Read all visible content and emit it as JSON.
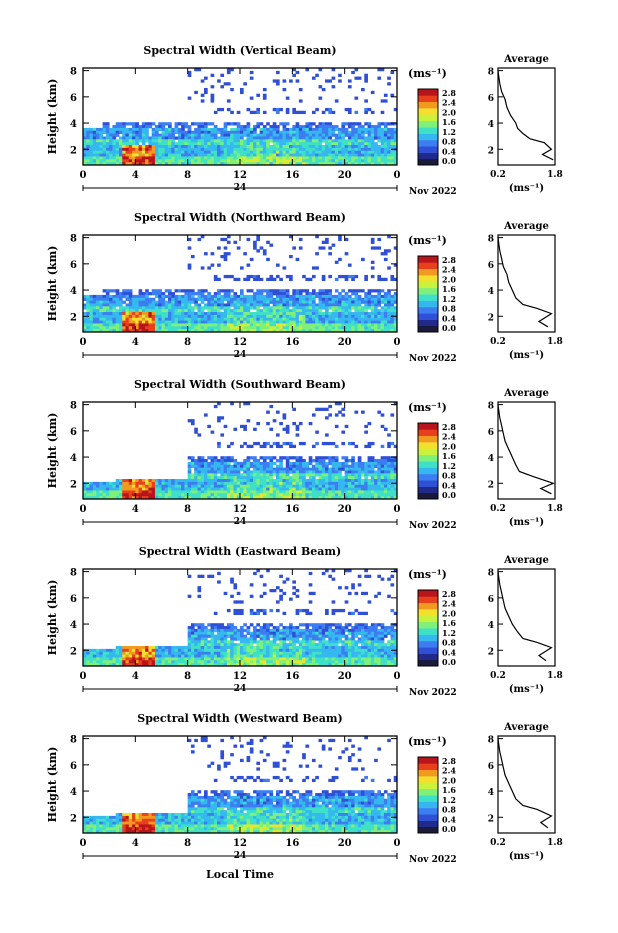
{
  "colors": {
    "background": "#ffffff",
    "axis": "#000000",
    "colormap": [
      "#1f2a8a",
      "#2f4fd6",
      "#3c7df2",
      "#35b8ef",
      "#3fe0c8",
      "#7ff07a",
      "#c8f23c",
      "#f2e02c",
      "#f29a20",
      "#e8401c",
      "#b8141c"
    ]
  },
  "footer": {
    "xlabel": "Local Time"
  },
  "chart_data": [
    {
      "type": "heatmap",
      "title": "Spectral Width (Vertical Beam)",
      "ylabel": "Height (km)",
      "xlabel": "",
      "x_ticks": [
        "0",
        "4",
        "8",
        "12",
        "16",
        "20",
        "0"
      ],
      "day_label": "24",
      "month_label": "Nov 2022",
      "y_ticks": [
        "2",
        "4",
        "6",
        "8"
      ],
      "xlim": [
        0,
        24
      ],
      "ylim": [
        0.8,
        8.2
      ],
      "colorbar": {
        "unit": "(ms⁻¹)",
        "ticks": [
          "0.0",
          "0.4",
          "0.8",
          "1.2",
          "1.6",
          "2.0",
          "2.4",
          "2.8"
        ],
        "range": [
          0.0,
          3.0
        ]
      },
      "average_profile": {
        "title": "Average",
        "xlabel": "(ms⁻¹)",
        "x_ticks": [
          "0.2",
          "1.8"
        ],
        "xlim": [
          0.2,
          1.8
        ],
        "y_ticks": [
          "2",
          "4",
          "6",
          "8"
        ],
        "ylim": [
          0.8,
          8.2
        ],
        "points": [
          [
            1.75,
            1.2
          ],
          [
            1.45,
            1.6
          ],
          [
            1.7,
            2.0
          ],
          [
            1.5,
            2.5
          ],
          [
            1.1,
            2.8
          ],
          [
            0.9,
            3.2
          ],
          [
            0.75,
            3.6
          ],
          [
            0.7,
            4.0
          ],
          [
            0.55,
            4.6
          ],
          [
            0.45,
            5.2
          ],
          [
            0.4,
            5.8
          ],
          [
            0.3,
            6.4
          ],
          [
            0.25,
            7.0
          ],
          [
            0.22,
            7.6
          ],
          [
            0.2,
            8.0
          ]
        ]
      }
    },
    {
      "type": "heatmap",
      "title": "Spectral Width (Northward Beam)",
      "ylabel": "Height (km)",
      "xlabel": "",
      "x_ticks": [
        "0",
        "4",
        "8",
        "12",
        "16",
        "20",
        "0"
      ],
      "day_label": "24",
      "month_label": "Nov 2022",
      "y_ticks": [
        "2",
        "4",
        "6",
        "8"
      ],
      "xlim": [
        0,
        24
      ],
      "ylim": [
        0.8,
        8.2
      ],
      "colorbar": {
        "unit": "(ms⁻¹)",
        "ticks": [
          "0.0",
          "0.4",
          "0.8",
          "1.2",
          "1.6",
          "2.0",
          "2.4",
          "2.8"
        ],
        "range": [
          0.0,
          3.0
        ]
      },
      "average_profile": {
        "title": "Average",
        "xlabel": "(ms⁻¹)",
        "x_ticks": [
          "0.2",
          "1.8"
        ],
        "xlim": [
          0.2,
          1.8
        ],
        "y_ticks": [
          "2",
          "4",
          "6",
          "8"
        ],
        "ylim": [
          0.8,
          8.2
        ],
        "points": [
          [
            1.6,
            1.2
          ],
          [
            1.35,
            1.6
          ],
          [
            1.7,
            2.2
          ],
          [
            1.3,
            2.6
          ],
          [
            0.9,
            2.9
          ],
          [
            0.7,
            3.4
          ],
          [
            0.6,
            4.0
          ],
          [
            0.5,
            4.6
          ],
          [
            0.45,
            5.2
          ],
          [
            0.35,
            5.8
          ],
          [
            0.3,
            6.4
          ],
          [
            0.25,
            7.0
          ],
          [
            0.22,
            7.6
          ],
          [
            0.2,
            8.0
          ]
        ]
      }
    },
    {
      "type": "heatmap",
      "title": "Spectral Width (Southward Beam)",
      "ylabel": "Height (km)",
      "xlabel": "",
      "x_ticks": [
        "0",
        "4",
        "8",
        "12",
        "16",
        "20",
        "0"
      ],
      "day_label": "24",
      "month_label": "Nov 2022",
      "y_ticks": [
        "2",
        "4",
        "6",
        "8"
      ],
      "xlim": [
        0,
        24
      ],
      "ylim": [
        0.8,
        8.2
      ],
      "colorbar": {
        "unit": "(ms⁻¹)",
        "ticks": [
          "0.0",
          "0.4",
          "0.8",
          "1.2",
          "1.6",
          "2.0",
          "2.4",
          "2.8"
        ],
        "range": [
          0.0,
          3.0
        ]
      },
      "average_profile": {
        "title": "Average",
        "xlabel": "(ms⁻¹)",
        "x_ticks": [
          "0.2",
          "1.8"
        ],
        "xlim": [
          0.2,
          1.8
        ],
        "y_ticks": [
          "2",
          "4",
          "6",
          "8"
        ],
        "ylim": [
          0.8,
          8.2
        ],
        "points": [
          [
            1.7,
            1.2
          ],
          [
            1.4,
            1.6
          ],
          [
            1.75,
            2.0
          ],
          [
            1.2,
            2.5
          ],
          [
            0.8,
            2.9
          ],
          [
            0.7,
            3.4
          ],
          [
            0.6,
            4.0
          ],
          [
            0.5,
            4.6
          ],
          [
            0.4,
            5.2
          ],
          [
            0.35,
            5.8
          ],
          [
            0.3,
            6.4
          ],
          [
            0.25,
            7.0
          ],
          [
            0.22,
            7.6
          ],
          [
            0.2,
            8.0
          ]
        ]
      }
    },
    {
      "type": "heatmap",
      "title": "Spectral Width (Eastward Beam)",
      "ylabel": "Height (km)",
      "xlabel": "",
      "x_ticks": [
        "0",
        "4",
        "8",
        "12",
        "16",
        "20",
        "0"
      ],
      "day_label": "24",
      "month_label": "Nov 2022",
      "y_ticks": [
        "2",
        "4",
        "6",
        "8"
      ],
      "xlim": [
        0,
        24
      ],
      "ylim": [
        0.8,
        8.2
      ],
      "colorbar": {
        "unit": "(ms⁻¹)",
        "ticks": [
          "0.0",
          "0.4",
          "0.8",
          "1.2",
          "1.6",
          "2.0",
          "2.4",
          "2.8"
        ],
        "range": [
          0.0,
          3.0
        ]
      },
      "average_profile": {
        "title": "Average",
        "xlabel": "(ms⁻¹)",
        "x_ticks": [
          "0.2",
          "1.8"
        ],
        "xlim": [
          0.2,
          1.8
        ],
        "y_ticks": [
          "2",
          "4",
          "6",
          "8"
        ],
        "ylim": [
          0.8,
          8.2
        ],
        "points": [
          [
            1.55,
            1.2
          ],
          [
            1.35,
            1.6
          ],
          [
            1.7,
            2.2
          ],
          [
            1.3,
            2.6
          ],
          [
            0.9,
            2.9
          ],
          [
            0.75,
            3.4
          ],
          [
            0.6,
            4.0
          ],
          [
            0.5,
            4.6
          ],
          [
            0.4,
            5.2
          ],
          [
            0.35,
            5.8
          ],
          [
            0.3,
            6.4
          ],
          [
            0.25,
            7.0
          ],
          [
            0.22,
            7.6
          ],
          [
            0.2,
            8.0
          ]
        ]
      }
    },
    {
      "type": "heatmap",
      "title": "Spectral Width (Westward Beam)",
      "ylabel": "Height (km)",
      "xlabel": "",
      "x_ticks": [
        "0",
        "4",
        "8",
        "12",
        "16",
        "20",
        "0"
      ],
      "day_label": "24",
      "month_label": "Nov 2022",
      "y_ticks": [
        "2",
        "4",
        "6",
        "8"
      ],
      "xlim": [
        0,
        24
      ],
      "ylim": [
        0.8,
        8.2
      ],
      "colorbar": {
        "unit": "(ms⁻¹)",
        "ticks": [
          "0.0",
          "0.4",
          "0.8",
          "1.2",
          "1.6",
          "2.0",
          "2.4",
          "2.8"
        ],
        "range": [
          0.0,
          3.0
        ]
      },
      "average_profile": {
        "title": "Average",
        "xlabel": "(ms⁻¹)",
        "x_ticks": [
          "0.2",
          "1.8"
        ],
        "xlim": [
          0.2,
          1.8
        ],
        "y_ticks": [
          "2",
          "4",
          "6",
          "8"
        ],
        "ylim": [
          0.8,
          8.2
        ],
        "points": [
          [
            1.6,
            1.2
          ],
          [
            1.4,
            1.6
          ],
          [
            1.7,
            2.1
          ],
          [
            1.3,
            2.6
          ],
          [
            0.9,
            2.9
          ],
          [
            0.7,
            3.4
          ],
          [
            0.6,
            4.0
          ],
          [
            0.5,
            4.6
          ],
          [
            0.4,
            5.2
          ],
          [
            0.35,
            5.8
          ],
          [
            0.3,
            6.4
          ],
          [
            0.25,
            7.0
          ],
          [
            0.22,
            7.6
          ],
          [
            0.2,
            8.0
          ]
        ]
      }
    }
  ]
}
